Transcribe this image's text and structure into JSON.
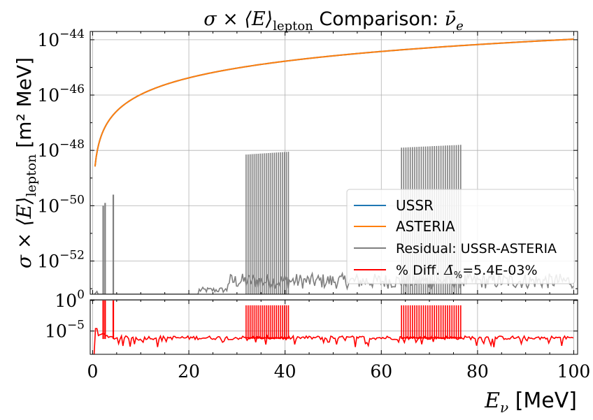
{
  "chart_data": [
    {
      "type": "line",
      "title_prefix": "σ × ⟨E⟩",
      "title_sub": "lepton",
      "title_mid": " Comparison: ",
      "title_nu": "ν̄",
      "title_nu_sub": "e",
      "ylabel_prefix": "σ × ⟨E⟩",
      "ylabel_sub": "lepton",
      "ylabel_suffix": " [m² MeV]",
      "yscale": "log",
      "xlim": [
        -0.5,
        100.8
      ],
      "ylim_log10": [
        -53.2,
        -43.7
      ],
      "grid": true,
      "legend_position": "lower-right",
      "x_ticks": [
        0,
        20,
        40,
        60,
        80,
        100
      ],
      "y_ticks": [
        {
          "exp": -44,
          "base": "10",
          "label": "−44"
        },
        {
          "exp": -46,
          "base": "10",
          "label": "−46"
        },
        {
          "exp": -48,
          "base": "10",
          "label": "−48"
        },
        {
          "exp": -50,
          "base": "10",
          "label": "−50"
        },
        {
          "exp": -52,
          "base": "10",
          "label": "−52"
        }
      ],
      "series": [
        {
          "name": "USSR",
          "color": "#1f77b4",
          "model": "log10(y) = -43.98 + 2*log10(E/100), E from 0.5 to 100 MeV"
        },
        {
          "name": "ASTERIA",
          "color": "#ff7f0e",
          "model": "coincides with USSR"
        },
        {
          "name": "Residual: USSR-ASTERIA",
          "color": "#7f7f7f",
          "notes": "spiky residual; baseline ~1e-53 to 1e-52.5; spike bands",
          "spikes": [
            {
              "x": 2.2,
              "log10_y": -50.0
            },
            {
              "x": 2.6,
              "log10_y": -49.9
            },
            {
              "x": 4.3,
              "log10_y": -49.6
            }
          ],
          "bands": [
            {
              "x_start": 31.9,
              "x_end": 40.7,
              "n": 22,
              "log10_y_start": -48.15,
              "log10_y_end": -48.05
            },
            {
              "x_start": 64.2,
              "x_end": 76.5,
              "n": 28,
              "log10_y_start": -47.9,
              "log10_y_end": -47.8
            }
          ]
        },
        {
          "name_prefix": "% Diff. ",
          "name_delta": "Δ̄",
          "name_delta_sub": "%",
          "name_suffix": "=5.4E-03%",
          "color": "#ff0000"
        }
      ]
    },
    {
      "type": "line",
      "yscale": "log",
      "xlim": [
        -0.5,
        100.8
      ],
      "ylim_log10": [
        -8.8,
        0.1
      ],
      "xlabel_prefix": "E",
      "xlabel_sub": "ν",
      "xlabel_suffix": " [MeV]",
      "y_ticks": [
        {
          "exp": 0,
          "base": "10",
          "label": "0"
        },
        {
          "exp": -5,
          "base": "10",
          "label": "−5"
        }
      ],
      "series": [
        {
          "name": "% Diff.",
          "color": "#ff0000",
          "baseline_log10": -6.0,
          "spikes": [
            {
              "x": 2.2,
              "log10_y": 0.0
            },
            {
              "x": 2.6,
              "log10_y": 0.0
            },
            {
              "x": 4.3,
              "log10_y": 0.0
            }
          ],
          "bands": [
            {
              "x_start": 31.9,
              "x_end": 40.7,
              "n": 22,
              "log10_y": -0.8
            },
            {
              "x_start": 64.2,
              "x_end": 76.5,
              "n": 28,
              "log10_y": -0.8
            }
          ]
        }
      ]
    }
  ]
}
